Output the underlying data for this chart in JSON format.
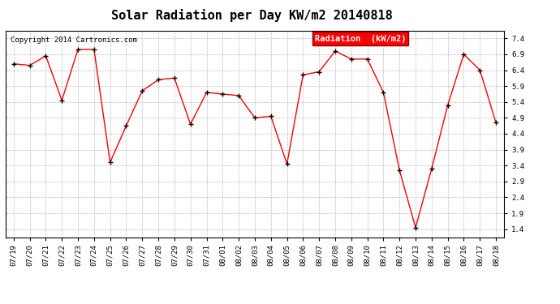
{
  "title": "Solar Radiation per Day KW/m2 20140818",
  "copyright": "Copyright 2014 Cartronics.com",
  "legend_label": "Radiation  (kW/m2)",
  "dates": [
    "07/19",
    "07/20",
    "07/21",
    "07/22",
    "07/23",
    "07/24",
    "07/25",
    "07/26",
    "07/27",
    "07/28",
    "07/29",
    "07/30",
    "07/31",
    "08/01",
    "08/02",
    "08/03",
    "08/04",
    "08/05",
    "08/06",
    "08/07",
    "08/08",
    "08/09",
    "08/10",
    "08/11",
    "08/12",
    "08/13",
    "08/14",
    "08/15",
    "08/16",
    "08/17",
    "08/18"
  ],
  "values": [
    6.6,
    6.55,
    6.85,
    5.45,
    7.05,
    7.05,
    3.5,
    4.65,
    5.75,
    6.1,
    6.15,
    4.7,
    5.7,
    5.65,
    5.6,
    4.9,
    4.95,
    3.45,
    6.25,
    6.35,
    7.0,
    6.75,
    6.75,
    5.7,
    3.25,
    1.45,
    3.3,
    5.3,
    6.9,
    6.4,
    4.75
  ],
  "line_color": "red",
  "marker_color": "black",
  "bg_color": "#ffffff",
  "grid_color": "#aaaaaa",
  "ylim": [
    1.15,
    7.65
  ],
  "yticks": [
    1.4,
    1.9,
    2.4,
    2.9,
    3.4,
    3.9,
    4.4,
    4.9,
    5.4,
    5.9,
    6.4,
    6.9,
    7.4
  ],
  "title_fontsize": 11,
  "copyright_fontsize": 6.5,
  "legend_fontsize": 7.5,
  "tick_fontsize": 6.5
}
